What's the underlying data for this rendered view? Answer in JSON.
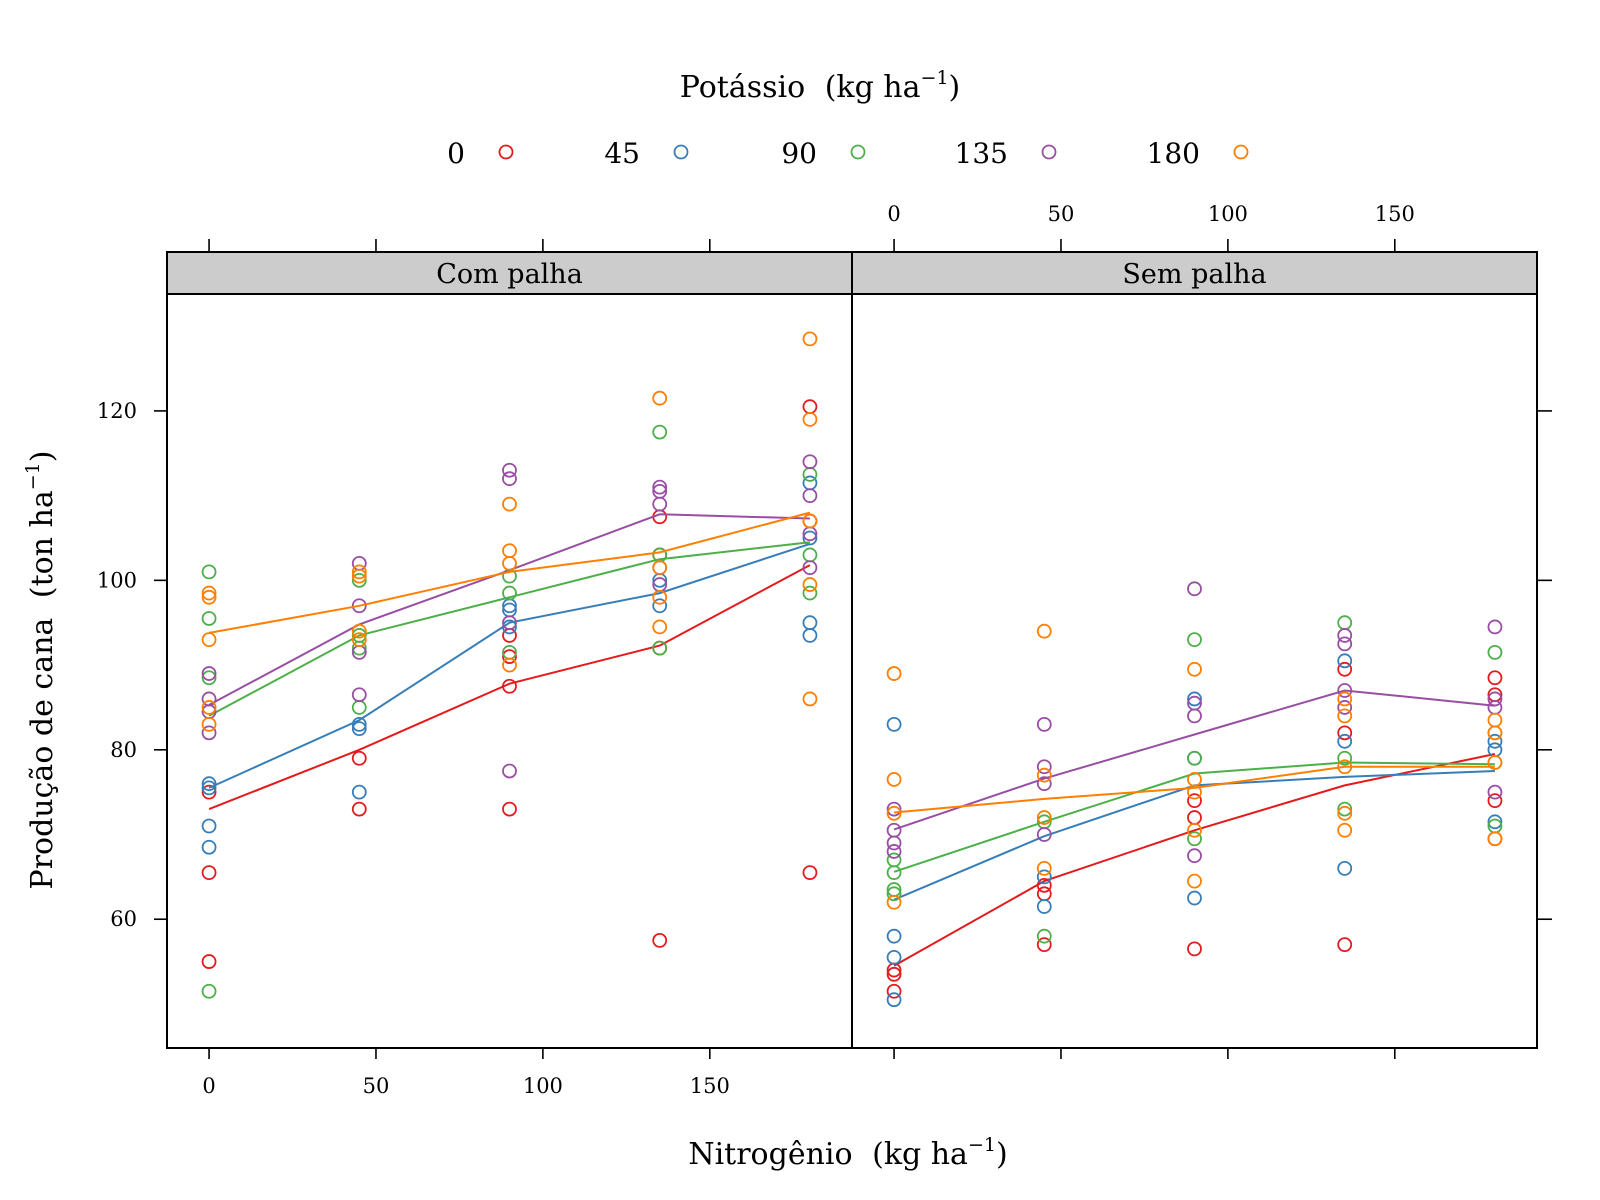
{
  "chart_data": {
    "type": "scatter",
    "legend": {
      "title": "Potássio",
      "title_unit": "(kg  ha",
      "title_sup": "−1",
      "title_close": ")",
      "placement": "top",
      "entries": [
        {
          "label": "0",
          "color": "#e41a1c"
        },
        {
          "label": "45",
          "color": "#377eb8"
        },
        {
          "label": "90",
          "color": "#4daf4a"
        },
        {
          "label": "135",
          "color": "#984ea3"
        },
        {
          "label": "180",
          "color": "#ff7f00"
        }
      ]
    },
    "xlabel": {
      "main": "Nitrogênio",
      "unit": "(kg  ha",
      "sup": "−1",
      "close": ")"
    },
    "ylabel": {
      "main": "Produção de cana",
      "unit": "(ton  ha",
      "sup": "−1",
      "close": ")"
    },
    "xlim": [
      -12.6,
      192.6
    ],
    "ylim": [
      44.8,
      133.8
    ],
    "x_ticks": [
      "0",
      "50",
      "100",
      "150"
    ],
    "y_ticks": [
      "60",
      "80",
      "100",
      "120"
    ],
    "grid": false,
    "panels": [
      {
        "strip": "Com palha",
        "series": [
          {
            "name": "0",
            "points": [
              [
                0,
                75
              ],
              [
                0,
                65.5
              ],
              [
                0,
                55
              ],
              [
                45,
                79
              ],
              [
                45,
                73
              ],
              [
                90,
                93.5
              ],
              [
                90,
                91
              ],
              [
                90,
                87.5
              ],
              [
                90,
                73
              ],
              [
                135,
                103
              ],
              [
                135,
                107.5
              ],
              [
                135,
                92
              ],
              [
                135,
                57.5
              ],
              [
                180,
                120.5
              ],
              [
                180,
                107
              ],
              [
                180,
                65.5
              ]
            ],
            "line": [
              [
                0,
                73
              ],
              [
                45,
                80
              ],
              [
                90,
                87.8
              ],
              [
                135,
                92.3
              ],
              [
                180,
                101.8
              ]
            ]
          },
          {
            "name": "45",
            "points": [
              [
                0,
                76
              ],
              [
                0,
                75.5
              ],
              [
                0,
                71
              ],
              [
                0,
                68.5
              ],
              [
                45,
                83
              ],
              [
                45,
                82.5
              ],
              [
                45,
                75
              ],
              [
                90,
                97
              ],
              [
                90,
                96.5
              ],
              [
                90,
                94.5
              ],
              [
                135,
                101.5
              ],
              [
                135,
                100
              ],
              [
                135,
                97
              ],
              [
                180,
                111.5
              ],
              [
                180,
                105
              ],
              [
                180,
                95
              ],
              [
                180,
                93.5
              ]
            ],
            "line": [
              [
                0,
                75.5
              ],
              [
                45,
                83.5
              ],
              [
                90,
                95
              ],
              [
                135,
                98.5
              ],
              [
                180,
                104.3
              ]
            ]
          },
          {
            "name": "90",
            "points": [
              [
                0,
                101
              ],
              [
                0,
                95.5
              ],
              [
                0,
                88.5
              ],
              [
                0,
                51.5
              ],
              [
                45,
                100
              ],
              [
                45,
                93.5
              ],
              [
                45,
                92
              ],
              [
                45,
                85
              ],
              [
                90,
                98.5
              ],
              [
                90,
                100.5
              ],
              [
                90,
                91.5
              ],
              [
                135,
                117.5
              ],
              [
                135,
                103
              ],
              [
                135,
                92
              ],
              [
                180,
                112.5
              ],
              [
                180,
                103
              ],
              [
                180,
                98.5
              ]
            ],
            "line": [
              [
                0,
                84
              ],
              [
                45,
                93.5
              ],
              [
                90,
                98
              ],
              [
                135,
                102.5
              ],
              [
                180,
                104.5
              ]
            ]
          },
          {
            "name": "135",
            "points": [
              [
                0,
                89
              ],
              [
                0,
                86
              ],
              [
                0,
                84.5
              ],
              [
                0,
                82
              ],
              [
                45,
                102
              ],
              [
                45,
                97
              ],
              [
                45,
                91.5
              ],
              [
                45,
                86.5
              ],
              [
                90,
                113
              ],
              [
                90,
                112
              ],
              [
                90,
                95
              ],
              [
                90,
                77.5
              ],
              [
                135,
                111
              ],
              [
                135,
                110.5
              ],
              [
                135,
                109
              ],
              [
                135,
                99.5
              ],
              [
                180,
                114
              ],
              [
                180,
                110
              ],
              [
                180,
                105.5
              ],
              [
                180,
                101.5
              ]
            ],
            "line": [
              [
                0,
                85.3
              ],
              [
                45,
                94.8
              ],
              [
                90,
                101.2
              ],
              [
                135,
                107.8
              ],
              [
                180,
                107.3
              ]
            ]
          },
          {
            "name": "180",
            "points": [
              [
                0,
                98.5
              ],
              [
                0,
                98
              ],
              [
                0,
                93
              ],
              [
                0,
                85
              ],
              [
                0,
                83
              ],
              [
                45,
                101
              ],
              [
                45,
                100.5
              ],
              [
                45,
                94
              ],
              [
                45,
                93
              ],
              [
                90,
                109
              ],
              [
                90,
                103.5
              ],
              [
                90,
                102
              ],
              [
                90,
                90
              ],
              [
                135,
                121.5
              ],
              [
                135,
                101.5
              ],
              [
                135,
                98
              ],
              [
                135,
                94.5
              ],
              [
                180,
                128.5
              ],
              [
                180,
                119
              ],
              [
                180,
                107
              ],
              [
                180,
                99.5
              ],
              [
                180,
                86
              ]
            ],
            "line": [
              [
                0,
                93.8
              ],
              [
                45,
                97
              ],
              [
                90,
                101
              ],
              [
                135,
                103.3
              ],
              [
                180,
                108
              ]
            ]
          }
        ]
      },
      {
        "strip": "Sem palha",
        "series": [
          {
            "name": "0",
            "points": [
              [
                0,
                54
              ],
              [
                0,
                53.5
              ],
              [
                0,
                51.5
              ],
              [
                45,
                64
              ],
              [
                45,
                63
              ],
              [
                45,
                57
              ],
              [
                90,
                74
              ],
              [
                90,
                72
              ],
              [
                90,
                56.5
              ],
              [
                135,
                89.5
              ],
              [
                135,
                82
              ],
              [
                135,
                57
              ],
              [
                180,
                88.5
              ],
              [
                180,
                86.5
              ],
              [
                180,
                74
              ],
              [
                180,
                69.5
              ]
            ],
            "line": [
              [
                0,
                54.5
              ],
              [
                45,
                64.5
              ],
              [
                90,
                70.5
              ],
              [
                135,
                75.8
              ],
              [
                180,
                79.5
              ]
            ]
          },
          {
            "name": "45",
            "points": [
              [
                0,
                83
              ],
              [
                0,
                58
              ],
              [
                0,
                55.5
              ],
              [
                0,
                50.5
              ],
              [
                45,
                65
              ],
              [
                45,
                61.5
              ],
              [
                90,
                86
              ],
              [
                90,
                79
              ],
              [
                90,
                62.5
              ],
              [
                135,
                90.5
              ],
              [
                135,
                81
              ],
              [
                135,
                66
              ],
              [
                180,
                81
              ],
              [
                180,
                80
              ],
              [
                180,
                71.5
              ]
            ],
            "line": [
              [
                0,
                62.3
              ],
              [
                45,
                69.8
              ],
              [
                90,
                75.8
              ],
              [
                135,
                76.8
              ],
              [
                180,
                77.5
              ]
            ]
          },
          {
            "name": "90",
            "points": [
              [
                0,
                67
              ],
              [
                0,
                65.5
              ],
              [
                0,
                63.5
              ],
              [
                0,
                63
              ],
              [
                45,
                71.5
              ],
              [
                45,
                58
              ],
              [
                90,
                93
              ],
              [
                90,
                79
              ],
              [
                90,
                69.5
              ],
              [
                135,
                95
              ],
              [
                135,
                79
              ],
              [
                135,
                73
              ],
              [
                180,
                91.5
              ],
              [
                180,
                82
              ],
              [
                180,
                78.5
              ],
              [
                180,
                71
              ]
            ],
            "line": [
              [
                0,
                65.6
              ],
              [
                45,
                71.5
              ],
              [
                90,
                77.2
              ],
              [
                135,
                78.5
              ],
              [
                180,
                78.3
              ]
            ]
          },
          {
            "name": "135",
            "points": [
              [
                0,
                73
              ],
              [
                0,
                70.5
              ],
              [
                0,
                69
              ],
              [
                0,
                68
              ],
              [
                45,
                83
              ],
              [
                45,
                78
              ],
              [
                45,
                76
              ],
              [
                45,
                70
              ],
              [
                90,
                99
              ],
              [
                90,
                85.5
              ],
              [
                90,
                84
              ],
              [
                90,
                67.5
              ],
              [
                135,
                93.5
              ],
              [
                135,
                92.5
              ],
              [
                135,
                87
              ],
              [
                135,
                85
              ],
              [
                180,
                94.5
              ],
              [
                180,
                86
              ],
              [
                180,
                85
              ],
              [
                180,
                75
              ]
            ],
            "line": [
              [
                0,
                70.6
              ],
              [
                45,
                76.6
              ],
              [
                90,
                81.8
              ],
              [
                135,
                87
              ],
              [
                180,
                85.2
              ]
            ]
          },
          {
            "name": "180",
            "points": [
              [
                0,
                89
              ],
              [
                0,
                76.5
              ],
              [
                0,
                72.5
              ],
              [
                0,
                62
              ],
              [
                45,
                94
              ],
              [
                45,
                77
              ],
              [
                45,
                72
              ],
              [
                45,
                66
              ],
              [
                90,
                89.5
              ],
              [
                90,
                76.5
              ],
              [
                90,
                75
              ],
              [
                90,
                70.5
              ],
              [
                90,
                64.5
              ],
              [
                135,
                86
              ],
              [
                135,
                84
              ],
              [
                135,
                78
              ],
              [
                135,
                72.5
              ],
              [
                135,
                70.5
              ],
              [
                180,
                83.5
              ],
              [
                180,
                82
              ],
              [
                180,
                78.5
              ],
              [
                180,
                69.5
              ]
            ],
            "line": [
              [
                0,
                72.6
              ],
              [
                45,
                74.2
              ],
              [
                90,
                75.5
              ],
              [
                135,
                78
              ],
              [
                180,
                78
              ]
            ]
          }
        ]
      }
    ]
  }
}
